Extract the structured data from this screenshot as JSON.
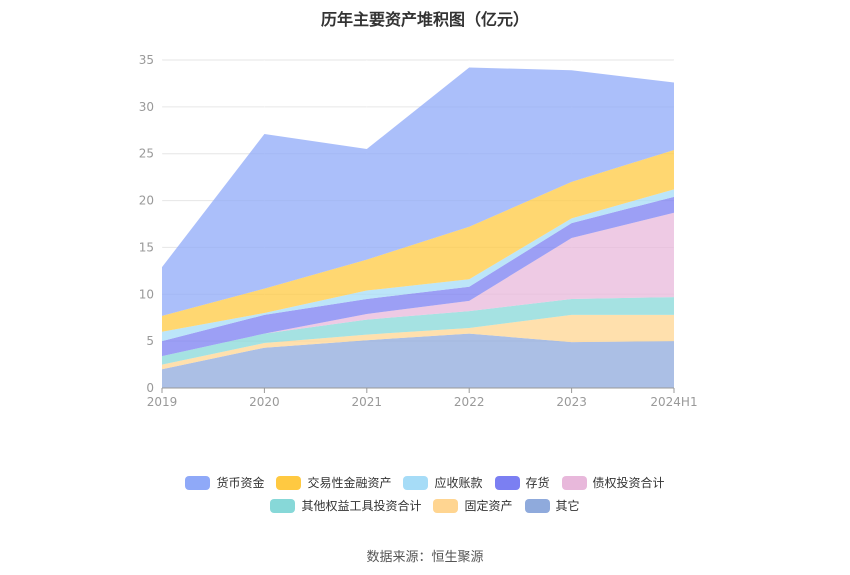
{
  "chart_data": {
    "type": "area",
    "title": "历年主要资产堆积图（亿元）",
    "stacked": true,
    "categories": [
      "2019",
      "2020",
      "2021",
      "2022",
      "2023",
      "2024H1"
    ],
    "ylim": [
      0,
      35
    ],
    "yticks": [
      0,
      5,
      10,
      15,
      20,
      25,
      30,
      35
    ],
    "grid": true,
    "legend_position": "bottom",
    "series": [
      {
        "name": "其它",
        "color": "#8faadc",
        "values": [
          2.0,
          4.3,
          5.1,
          5.8,
          4.9,
          5.0
        ]
      },
      {
        "name": "固定资产",
        "color": "#ffd591",
        "values": [
          0.5,
          0.5,
          0.6,
          0.6,
          2.9,
          2.8
        ]
      },
      {
        "name": "其他权益工具投资合计",
        "color": "#87d8d8",
        "values": [
          0.9,
          1.0,
          1.6,
          1.8,
          1.7,
          1.9
        ]
      },
      {
        "name": "债权投资合计",
        "color": "#e8b8db",
        "values": [
          0.0,
          0.0,
          0.6,
          1.1,
          6.5,
          9.0
        ]
      },
      {
        "name": "存货",
        "color": "#7b7ff2",
        "values": [
          1.6,
          2.0,
          1.6,
          1.5,
          1.6,
          1.7
        ]
      },
      {
        "name": "应收账款",
        "color": "#a6dcf7",
        "values": [
          1.0,
          0.2,
          0.9,
          0.8,
          0.5,
          0.8
        ]
      },
      {
        "name": "交易性金融资产",
        "color": "#ffc941",
        "values": [
          1.7,
          2.6,
          3.3,
          5.6,
          3.9,
          4.2
        ]
      },
      {
        "name": "货币资金",
        "color": "#8fa9f8",
        "values": [
          5.2,
          16.5,
          11.8,
          17.0,
          11.9,
          7.2
        ]
      }
    ]
  },
  "legend": {
    "row1": [
      {
        "name": "货币资金",
        "color": "#8fa9f8"
      },
      {
        "name": "交易性金融资产",
        "color": "#ffc941"
      },
      {
        "name": "应收账款",
        "color": "#a6dcf7"
      },
      {
        "name": "存货",
        "color": "#7b7ff2"
      },
      {
        "name": "债权投资合计",
        "color": "#e8b8db"
      }
    ],
    "row2": [
      {
        "name": "其他权益工具投资合计",
        "color": "#87d8d8"
      },
      {
        "name": "固定资产",
        "color": "#ffd591"
      },
      {
        "name": "其它",
        "color": "#8faadc"
      }
    ]
  },
  "source": "数据来源：恒生聚源"
}
